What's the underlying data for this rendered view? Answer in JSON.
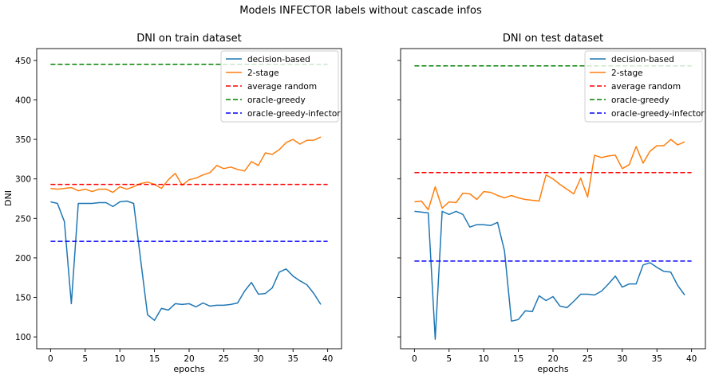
{
  "figure": {
    "suptitle": "Models INFECTOR labels without cascade infos"
  },
  "colors": {
    "decision-based": "#1f77b4",
    "2-stage": "#ff7f0e",
    "average random": "#ff0000",
    "oracle-greedy": "#008000",
    "oracle-greedy-infector": "#0000ff"
  },
  "chart_data": [
    {
      "type": "line",
      "title": "DNI on train dataset",
      "xlabel": "epochs",
      "ylabel": "DNI",
      "xlim": [
        -2,
        42
      ],
      "ylim": [
        85,
        465
      ],
      "xticks": [
        0,
        5,
        10,
        15,
        20,
        25,
        30,
        35,
        40
      ],
      "yticks": [
        100,
        150,
        200,
        250,
        300,
        350,
        400,
        450
      ],
      "grid": false,
      "legend": "top-right",
      "series": [
        {
          "name": "decision-based",
          "style": "solid",
          "x": [
            0,
            1,
            2,
            3,
            4,
            5,
            6,
            7,
            8,
            9,
            10,
            11,
            12,
            13,
            14,
            15,
            16,
            17,
            18,
            19,
            20,
            21,
            22,
            23,
            24,
            25,
            26,
            27,
            28,
            29,
            30,
            31,
            32,
            33,
            34,
            35,
            36,
            37,
            38,
            39
          ],
          "y": [
            271,
            269,
            246,
            142,
            269,
            269,
            269,
            270,
            270,
            265,
            271,
            272,
            269,
            198,
            128,
            121,
            136,
            134,
            142,
            141,
            142,
            138,
            143,
            139,
            140,
            140,
            141,
            143,
            158,
            169,
            154,
            155,
            162,
            182,
            186,
            177,
            171,
            166,
            155,
            141
          ]
        },
        {
          "name": "2-stage",
          "style": "solid",
          "x": [
            0,
            1,
            2,
            3,
            4,
            5,
            6,
            7,
            8,
            9,
            10,
            11,
            12,
            13,
            14,
            15,
            16,
            17,
            18,
            19,
            20,
            21,
            22,
            23,
            24,
            25,
            26,
            27,
            28,
            29,
            30,
            31,
            32,
            33,
            34,
            35,
            36,
            37,
            38,
            39
          ],
          "y": [
            288,
            287,
            288,
            289,
            285,
            287,
            284,
            287,
            287,
            283,
            290,
            287,
            290,
            294,
            296,
            293,
            288,
            299,
            307,
            292,
            299,
            301,
            305,
            308,
            317,
            313,
            315,
            312,
            310,
            322,
            317,
            333,
            331,
            337,
            346,
            350,
            344,
            349,
            349,
            353
          ]
        },
        {
          "name": "average random",
          "style": "dashed",
          "x": [
            0,
            40
          ],
          "y": [
            293,
            293
          ]
        },
        {
          "name": "oracle-greedy",
          "style": "dashed",
          "x": [
            0,
            40
          ],
          "y": [
            445,
            445
          ]
        },
        {
          "name": "oracle-greedy-infector",
          "style": "dashed",
          "x": [
            0,
            40
          ],
          "y": [
            221,
            221
          ]
        }
      ]
    },
    {
      "type": "line",
      "title": "DNI on test dataset",
      "xlabel": "epochs",
      "ylabel": "",
      "xlim": [
        -2,
        42
      ],
      "ylim": [
        85,
        465
      ],
      "xticks": [
        0,
        5,
        10,
        15,
        20,
        25,
        30,
        35,
        40
      ],
      "yticks": [
        100,
        150,
        200,
        250,
        300,
        350,
        400,
        450
      ],
      "grid": false,
      "legend": "top-right",
      "series": [
        {
          "name": "decision-based",
          "style": "solid",
          "x": [
            0,
            1,
            2,
            3,
            4,
            5,
            6,
            7,
            8,
            9,
            10,
            11,
            12,
            13,
            14,
            15,
            16,
            17,
            18,
            19,
            20,
            21,
            22,
            23,
            24,
            25,
            26,
            27,
            28,
            29,
            30,
            31,
            32,
            33,
            34,
            35,
            36,
            37,
            38,
            39
          ],
          "y": [
            259,
            258,
            257,
            97,
            259,
            255,
            259,
            255,
            239,
            242,
            242,
            241,
            245,
            209,
            120,
            122,
            133,
            132,
            152,
            146,
            151,
            139,
            137,
            145,
            154,
            154,
            153,
            158,
            167,
            177,
            163,
            167,
            167,
            191,
            194,
            188,
            183,
            182,
            165,
            153
          ]
        },
        {
          "name": "2-stage",
          "style": "solid",
          "x": [
            0,
            1,
            2,
            3,
            4,
            5,
            6,
            7,
            8,
            9,
            10,
            11,
            12,
            13,
            14,
            15,
            16,
            17,
            18,
            19,
            20,
            21,
            22,
            23,
            24,
            25,
            26,
            27,
            28,
            29,
            30,
            31,
            32,
            33,
            34,
            35,
            36,
            37,
            38,
            39
          ],
          "y": [
            271,
            272,
            261,
            290,
            263,
            271,
            270,
            282,
            281,
            274,
            284,
            283,
            279,
            276,
            279,
            276,
            274,
            273,
            272,
            305,
            300,
            293,
            287,
            281,
            301,
            277,
            330,
            327,
            329,
            330,
            313,
            318,
            341,
            320,
            335,
            342,
            342,
            350,
            343,
            347
          ]
        },
        {
          "name": "average random",
          "style": "dashed",
          "x": [
            0,
            40
          ],
          "y": [
            308,
            308
          ]
        },
        {
          "name": "oracle-greedy",
          "style": "dashed",
          "x": [
            0,
            40
          ],
          "y": [
            443,
            443
          ]
        },
        {
          "name": "oracle-greedy-infector",
          "style": "dashed",
          "x": [
            0,
            40
          ],
          "y": [
            196,
            196
          ]
        }
      ]
    }
  ]
}
